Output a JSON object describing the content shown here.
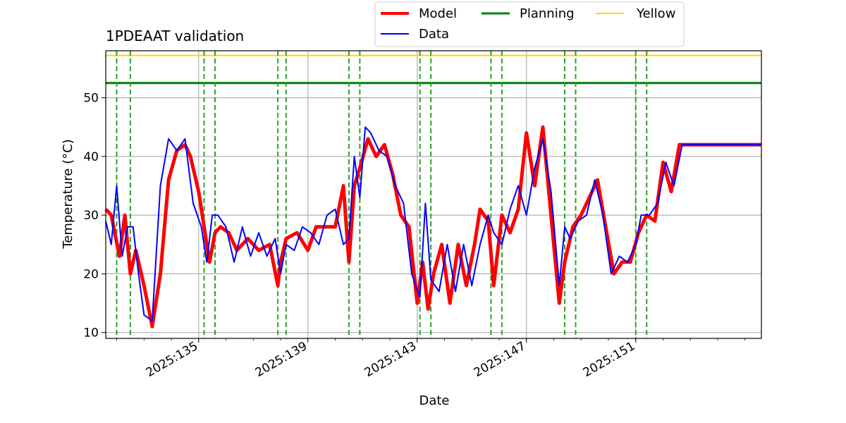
{
  "chart_data": {
    "type": "line",
    "title": "1PDEAAT validation",
    "xlabel": "Date",
    "ylabel": "Temperature ($^\\circ$C)",
    "ylabel_display": "Temperature (°C)",
    "xlim": [
      2025.1316,
      2025.1556
    ],
    "ylim": [
      9,
      58
    ],
    "yticks": [
      10,
      20,
      30,
      40,
      50
    ],
    "xticks": [
      {
        "value": 2025.135,
        "label": "2025:135"
      },
      {
        "value": 2025.139,
        "label": "2025:139"
      },
      {
        "value": 2025.143,
        "label": "2025:143"
      },
      {
        "value": 2025.147,
        "label": "2025:147"
      },
      {
        "value": 2025.151,
        "label": "2025:151"
      }
    ],
    "grid": true,
    "legend_position": "top, above plot",
    "legend": [
      {
        "name": "Model",
        "color": "#ff0000"
      },
      {
        "name": "Data",
        "color": "#0000ff"
      },
      {
        "name": "Planning",
        "color": "#008000"
      },
      {
        "name": "Yellow",
        "color": "#ffd700"
      }
    ],
    "hlines": [
      {
        "name": "Planning",
        "y": 52.5,
        "color": "#008000"
      },
      {
        "name": "Yellow",
        "y": 57.2,
        "color": "#ffd700"
      }
    ],
    "vlines": [
      2025.132,
      2025.1325,
      2025.1352,
      2025.1356,
      2025.1379,
      2025.1382,
      2025.1405,
      2025.1409,
      2025.1431,
      2025.1435,
      2025.1457,
      2025.1461,
      2025.1484,
      2025.1488,
      2025.151,
      2025.1514
    ],
    "vline_color": "#2ca02c",
    "series": [
      {
        "name": "Model",
        "color": "#ff0000",
        "x": [
          2025.1316,
          2025.1318,
          2025.1321,
          2025.1323,
          2025.1325,
          2025.1327,
          2025.133,
          2025.1333,
          2025.1336,
          2025.1339,
          2025.1342,
          2025.1345,
          2025.1347,
          2025.135,
          2025.1352,
          2025.1354,
          2025.1356,
          2025.1358,
          2025.1361,
          2025.1364,
          2025.1368,
          2025.1372,
          2025.1376,
          2025.1379,
          2025.138,
          2025.1382,
          2025.1386,
          2025.139,
          2025.1393,
          2025.1396,
          2025.14,
          2025.1403,
          2025.1405,
          2025.1407,
          2025.1409,
          2025.1412,
          2025.1415,
          2025.1418,
          2025.1421,
          2025.1424,
          2025.1427,
          2025.143,
          2025.1432,
          2025.1434,
          2025.1436,
          2025.1439,
          2025.1442,
          2025.1445,
          2025.1448,
          2025.1451,
          2025.1453,
          2025.1456,
          2025.1458,
          2025.1461,
          2025.1464,
          2025.1467,
          2025.147,
          2025.1473,
          2025.1476,
          2025.1479,
          2025.1482,
          2025.1484,
          2025.1487,
          2025.149,
          2025.1493,
          2025.1496,
          2025.1499,
          2025.1502,
          2025.1505,
          2025.1508,
          2025.1511,
          2025.1514,
          2025.1517,
          2025.152,
          2025.1523,
          2025.1526,
          2025.153,
          2025.1535,
          2025.154,
          2025.1545,
          2025.155,
          2025.1556
        ],
        "y": [
          31,
          30,
          23,
          30,
          20,
          24,
          18,
          11,
          20,
          36,
          41,
          42,
          40,
          34,
          28,
          22,
          27,
          28,
          27,
          24,
          26,
          24,
          25,
          18,
          22,
          26,
          27,
          24,
          28,
          28,
          28,
          35,
          22,
          35,
          38,
          43,
          40,
          42,
          37,
          30,
          28,
          15,
          22,
          14,
          20,
          25,
          15,
          25,
          18,
          25,
          31,
          29,
          18,
          30,
          27,
          31,
          44,
          35,
          45,
          30,
          15,
          22,
          28,
          30,
          33,
          36,
          28,
          20,
          22,
          22,
          27,
          30,
          29,
          39,
          34,
          42,
          42,
          42,
          42,
          42,
          42,
          42
        ]
      },
      {
        "name": "Data",
        "color": "#0000ff",
        "x": [
          2025.1316,
          2025.1318,
          2025.132,
          2025.1322,
          2025.1324,
          2025.1326,
          2025.1328,
          2025.133,
          2025.1333,
          2025.1336,
          2025.1339,
          2025.1342,
          2025.1345,
          2025.1348,
          2025.1351,
          2025.1353,
          2025.1355,
          2025.1357,
          2025.136,
          2025.1363,
          2025.1366,
          2025.1369,
          2025.1372,
          2025.1375,
          2025.1378,
          2025.138,
          2025.1382,
          2025.1385,
          2025.1388,
          2025.1391,
          2025.1394,
          2025.1397,
          2025.14,
          2025.1403,
          2025.1405,
          2025.1407,
          2025.1409,
          2025.1411,
          2025.1413,
          2025.1416,
          2025.1419,
          2025.1422,
          2025.1425,
          2025.1428,
          2025.1431,
          2025.1433,
          2025.1435,
          2025.1438,
          2025.1441,
          2025.1444,
          2025.1447,
          2025.145,
          2025.1453,
          2025.1456,
          2025.1458,
          2025.1461,
          2025.1464,
          2025.1467,
          2025.147,
          2025.1473,
          2025.1476,
          2025.1479,
          2025.1482,
          2025.1484,
          2025.1486,
          2025.1489,
          2025.1492,
          2025.1495,
          2025.1498,
          2025.1501,
          2025.1504,
          2025.1507,
          2025.151,
          2025.1512,
          2025.1515,
          2025.1518,
          2025.1521,
          2025.1524,
          2025.1527,
          2025.153,
          2025.1535,
          2025.154,
          2025.1545,
          2025.155,
          2025.1556
        ],
        "y": [
          29,
          25,
          35,
          23,
          28,
          28,
          20,
          13,
          12,
          35,
          43,
          41,
          43,
          32,
          28,
          22,
          30,
          30,
          28,
          22,
          28,
          23,
          27,
          23,
          26,
          20,
          25,
          24,
          28,
          27,
          25,
          30,
          31,
          25,
          26,
          40,
          33,
          45,
          44,
          41,
          40,
          35,
          32,
          20,
          16,
          32,
          19,
          17,
          25,
          17,
          25,
          18,
          25,
          30,
          27,
          25,
          31,
          35,
          30,
          38,
          43,
          34,
          18,
          28,
          26,
          29,
          30,
          36,
          30,
          20,
          23,
          22,
          25,
          30,
          30,
          32,
          39,
          35,
          42,
          42,
          42,
          42,
          42,
          42,
          42
        ]
      }
    ]
  }
}
